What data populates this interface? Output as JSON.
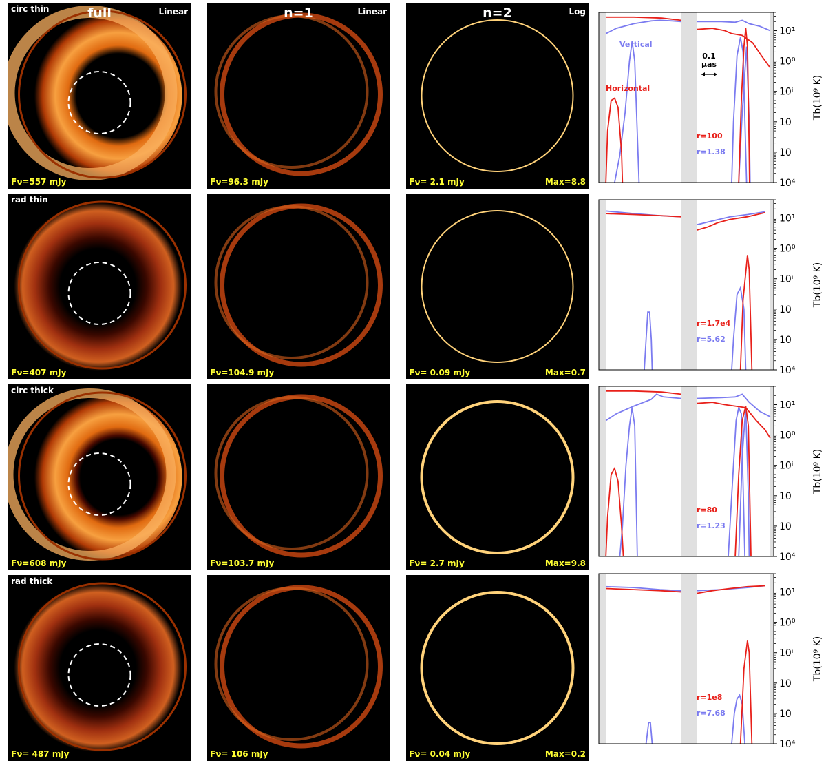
{
  "colors": {
    "vertical": "#7b7bf0",
    "horizontal": "#e8201a",
    "flux": "#ffff33",
    "band": "#e0e0e0"
  },
  "column_titles": [
    "full",
    "n=1",
    "n=2"
  ],
  "scale_labels": {
    "full": "Linear",
    "n1": "Linear",
    "n2": "Log"
  },
  "rows": [
    {
      "label": "circ thin",
      "flux_full": "Fν=557 mJy",
      "flux_n1": "Fν=96.3 mJy",
      "flux_n2": "Fν= 2.1 mJy",
      "max": "Max=8.8"
    },
    {
      "label": "rad thin",
      "flux_full": "Fν=407 mJy",
      "flux_n1": "Fν=104.9 mJy",
      "flux_n2": "Fν= 0.09 mJy",
      "max": "Max=0.7"
    },
    {
      "label": "circ thick",
      "flux_full": "Fν=608 mJy",
      "flux_n1": "Fν=103.7 mJy",
      "flux_n2": "Fν= 2.7 mJy",
      "max": "Max=9.8"
    },
    {
      "label": "rad thick",
      "flux_full": "Fν= 487 mJy",
      "flux_n1": "Fν= 106 mJy",
      "flux_n2": "Fν= 0.04 mJy",
      "max": "Max=0.2"
    }
  ],
  "chart_data": {
    "type": "line",
    "yscale": "log",
    "ylim": [
      0.0001,
      40
    ],
    "xlim": [
      0,
      1
    ],
    "ylabel": "Tb(10⁹ K)",
    "yticks": [
      "10⁴",
      "10⁳",
      "10⁲",
      "10ⁱ",
      "10⁰",
      "10¹"
    ],
    "scale_bar": {
      "line1": "0.1",
      "line2": "μas"
    },
    "legend": {
      "vertical": "Vertical",
      "horizontal": "Horizontal"
    },
    "panels": [
      {
        "ratio_h": "r=100",
        "ratio_v": "r=1.38",
        "bands": [
          [
            0,
            0.04
          ],
          [
            0.47,
            0.56
          ],
          [
            0.98,
            1.0
          ]
        ],
        "vertical": [
          [
            [
              0.04,
              8
            ],
            [
              0.1,
              12
            ],
            [
              0.2,
              17
            ],
            [
              0.3,
              21
            ],
            [
              0.35,
              22
            ],
            [
              0.42,
              21
            ],
            [
              0.47,
              20
            ]
          ],
          [
            [
              0.56,
              20
            ],
            [
              0.7,
              20
            ],
            [
              0.78,
              19
            ],
            [
              0.82,
              22
            ],
            [
              0.86,
              17
            ],
            [
              0.92,
              14
            ],
            [
              0.98,
              10
            ]
          ],
          [
            [
              0.09,
              0.0001
            ],
            [
              0.12,
              0.0008
            ],
            [
              0.15,
              0.02
            ],
            [
              0.175,
              1
            ],
            [
              0.19,
              4.5
            ],
            [
              0.205,
              1
            ],
            [
              0.23,
              0.0001
            ]
          ],
          [
            [
              0.76,
              0.0001
            ],
            [
              0.77,
              0.01
            ],
            [
              0.79,
              1.5
            ],
            [
              0.81,
              6
            ],
            [
              0.825,
              2
            ],
            [
              0.84,
              0.001
            ],
            [
              0.845,
              0.0001
            ]
          ],
          [
            [
              0.8,
              0.0001
            ],
            [
              0.82,
              0.02
            ],
            [
              0.845,
              3
            ],
            [
              0.86,
              0.01
            ],
            [
              0.865,
              0.0001
            ]
          ]
        ],
        "horizontal": [
          [
            [
              0.04,
              28
            ],
            [
              0.2,
              28
            ],
            [
              0.36,
              26
            ],
            [
              0.47,
              22
            ]
          ],
          [
            [
              0.56,
              11
            ],
            [
              0.65,
              12
            ],
            [
              0.72,
              10
            ],
            [
              0.76,
              8
            ],
            [
              0.82,
              7
            ],
            [
              0.88,
              4
            ],
            [
              0.93,
              1.5
            ],
            [
              0.98,
              0.6
            ]
          ],
          [
            [
              0.04,
              0.0001
            ],
            [
              0.05,
              0.005
            ],
            [
              0.07,
              0.05
            ],
            [
              0.09,
              0.06
            ],
            [
              0.11,
              0.03
            ],
            [
              0.13,
              0.001
            ],
            [
              0.135,
              0.0001
            ]
          ],
          [
            [
              0.8,
              0.0001
            ],
            [
              0.815,
              0.05
            ],
            [
              0.83,
              3
            ],
            [
              0.84,
              12
            ],
            [
              0.85,
              3
            ],
            [
              0.86,
              0.001
            ],
            [
              0.862,
              0.0001
            ]
          ]
        ]
      },
      {
        "ratio_h": "r=1.7e4",
        "ratio_v": "r=5.62",
        "bands": [
          [
            0,
            0.04
          ],
          [
            0.47,
            0.56
          ],
          [
            0.98,
            1.0
          ]
        ],
        "vertical": [
          [
            [
              0.04,
              17
            ],
            [
              0.2,
              14
            ],
            [
              0.35,
              12
            ],
            [
              0.47,
              11
            ]
          ],
          [
            [
              0.56,
              6
            ],
            [
              0.65,
              8
            ],
            [
              0.75,
              11
            ],
            [
              0.85,
              13
            ],
            [
              0.95,
              16
            ]
          ],
          [
            [
              0.26,
              0.0001
            ],
            [
              0.27,
              0.001
            ],
            [
              0.28,
              0.008
            ],
            [
              0.29,
              0.008
            ],
            [
              0.3,
              0.001
            ],
            [
              0.305,
              0.0001
            ]
          ],
          [
            [
              0.76,
              0.0001
            ],
            [
              0.77,
              0.001
            ],
            [
              0.79,
              0.03
            ],
            [
              0.81,
              0.05
            ],
            [
              0.83,
              0.01
            ],
            [
              0.84,
              0.0001
            ]
          ]
        ],
        "horizontal": [
          [
            [
              0.04,
              14
            ],
            [
              0.2,
              13
            ],
            [
              0.35,
              12
            ],
            [
              0.47,
              11
            ]
          ],
          [
            [
              0.56,
              4
            ],
            [
              0.62,
              5
            ],
            [
              0.68,
              7
            ],
            [
              0.75,
              9
            ],
            [
              0.85,
              11
            ],
            [
              0.95,
              15
            ]
          ],
          [
            [
              0.81,
              0.0001
            ],
            [
              0.825,
              0.02
            ],
            [
              0.85,
              0.6
            ],
            [
              0.86,
              0.2
            ],
            [
              0.875,
              0.0001
            ]
          ]
        ]
      },
      {
        "ratio_h": "r=80",
        "ratio_v": "r=1.23",
        "bands": [
          [
            0,
            0.04
          ],
          [
            0.47,
            0.56
          ],
          [
            0.98,
            1.0
          ]
        ],
        "vertical": [
          [
            [
              0.04,
              3
            ],
            [
              0.1,
              5
            ],
            [
              0.2,
              9
            ],
            [
              0.3,
              15
            ],
            [
              0.33,
              22
            ],
            [
              0.37,
              18
            ],
            [
              0.47,
              16
            ]
          ],
          [
            [
              0.56,
              16
            ],
            [
              0.7,
              17
            ],
            [
              0.78,
              18
            ],
            [
              0.82,
              22
            ],
            [
              0.86,
              12
            ],
            [
              0.92,
              6
            ],
            [
              0.98,
              4
            ]
          ],
          [
            [
              0.12,
              0.0001
            ],
            [
              0.135,
              0.001
            ],
            [
              0.155,
              0.1
            ],
            [
              0.175,
              2
            ],
            [
              0.19,
              8
            ],
            [
              0.205,
              2
            ],
            [
              0.22,
              0.0001
            ]
          ],
          [
            [
              0.74,
              0.0001
            ],
            [
              0.76,
              0.01
            ],
            [
              0.785,
              3
            ],
            [
              0.8,
              8
            ],
            [
              0.815,
              5
            ],
            [
              0.835,
              0.0001
            ]
          ],
          [
            [
              0.8,
              0.0001
            ],
            [
              0.82,
              0.2
            ],
            [
              0.84,
              8
            ],
            [
              0.855,
              0.01
            ],
            [
              0.86,
              0.0001
            ]
          ]
        ],
        "horizontal": [
          [
            [
              0.04,
              28
            ],
            [
              0.2,
              28
            ],
            [
              0.36,
              26
            ],
            [
              0.47,
              22
            ]
          ],
          [
            [
              0.56,
              11
            ],
            [
              0.65,
              12
            ],
            [
              0.72,
              10
            ],
            [
              0.78,
              9
            ],
            [
              0.84,
              8
            ],
            [
              0.9,
              3
            ],
            [
              0.95,
              1.5
            ],
            [
              0.98,
              0.8
            ]
          ],
          [
            [
              0.04,
              0.0001
            ],
            [
              0.05,
              0.002
            ],
            [
              0.07,
              0.05
            ],
            [
              0.09,
              0.08
            ],
            [
              0.11,
              0.03
            ],
            [
              0.13,
              0.001
            ],
            [
              0.14,
              0.0001
            ]
          ],
          [
            [
              0.78,
              0.0001
            ],
            [
              0.8,
              0.05
            ],
            [
              0.82,
              3
            ],
            [
              0.84,
              9
            ],
            [
              0.855,
              2
            ],
            [
              0.87,
              0.0001
            ]
          ]
        ]
      },
      {
        "ratio_h": "r=1e8",
        "ratio_v": "r=7.68",
        "bands": [
          [
            0,
            0.04
          ],
          [
            0.47,
            0.56
          ],
          [
            0.98,
            1.0
          ]
        ],
        "vertical": [
          [
            [
              0.04,
              15
            ],
            [
              0.2,
              14
            ],
            [
              0.35,
              12
            ],
            [
              0.47,
              11
            ]
          ],
          [
            [
              0.56,
              11
            ],
            [
              0.7,
              12
            ],
            [
              0.85,
              14
            ],
            [
              0.95,
              16
            ]
          ],
          [
            [
              0.27,
              0.0001
            ],
            [
              0.285,
              0.0005
            ],
            [
              0.295,
              0.0005
            ],
            [
              0.305,
              0.0001
            ]
          ],
          [
            [
              0.76,
              0.0001
            ],
            [
              0.775,
              0.001
            ],
            [
              0.79,
              0.003
            ],
            [
              0.805,
              0.004
            ],
            [
              0.82,
              0.002
            ],
            [
              0.835,
              0.0001
            ]
          ]
        ],
        "horizontal": [
          [
            [
              0.04,
              13
            ],
            [
              0.2,
              12
            ],
            [
              0.35,
              11
            ],
            [
              0.47,
              10
            ]
          ],
          [
            [
              0.56,
              9
            ],
            [
              0.65,
              11
            ],
            [
              0.75,
              13
            ],
            [
              0.85,
              15
            ],
            [
              0.95,
              16
            ]
          ],
          [
            [
              0.81,
              0.0001
            ],
            [
              0.83,
              0.03
            ],
            [
              0.85,
              0.25
            ],
            [
              0.86,
              0.1
            ],
            [
              0.875,
              0.0001
            ]
          ]
        ]
      }
    ]
  }
}
